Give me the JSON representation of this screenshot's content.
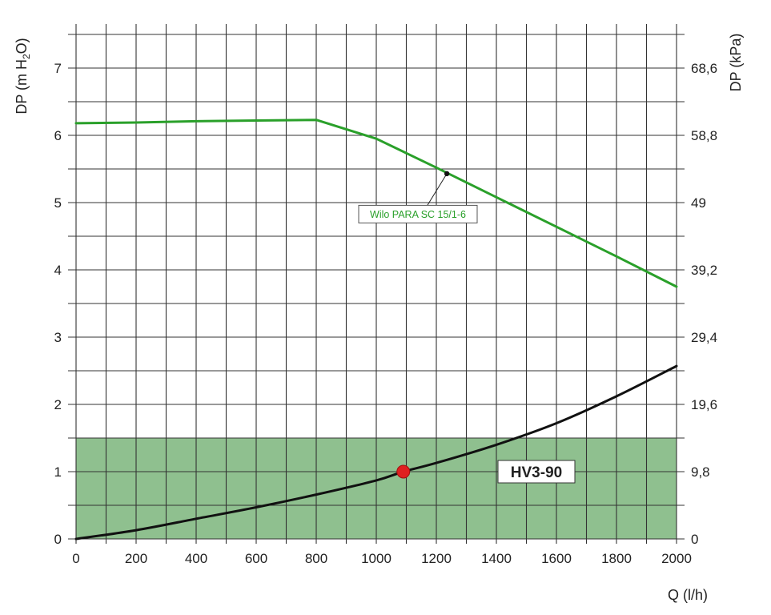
{
  "chart_data": {
    "type": "line",
    "xlabel": "Q (l/h)",
    "ylabel": {
      "prefix": "DP (m H",
      "sub": "2",
      "suffix": "O)"
    },
    "ylabel_right": "DP (kPa)",
    "xlim": [
      0,
      2000
    ],
    "ylim": [
      0,
      7.5
    ],
    "x_ticks": [
      0,
      200,
      400,
      600,
      800,
      1000,
      1200,
      1400,
      1600,
      1800,
      2000
    ],
    "y_ticks": [
      0,
      1,
      2,
      3,
      4,
      5,
      6,
      7
    ],
    "y_ticks_right": [
      {
        "value": 0,
        "label": "0"
      },
      {
        "value": 1,
        "label": "9,8"
      },
      {
        "value": 2,
        "label": "19,6"
      },
      {
        "value": 3,
        "label": "29,4"
      },
      {
        "value": 4,
        "label": "39,2"
      },
      {
        "value": 5,
        "label": "49"
      },
      {
        "value": 6,
        "label": "58,8"
      },
      {
        "value": 7,
        "label": "68,6"
      }
    ],
    "grid": true,
    "shaded_band": {
      "y_from": 0,
      "y_to": 1.5,
      "x_from": 0,
      "x_to": 2000,
      "color": "#8fc08f"
    },
    "series": [
      {
        "name": "Wilo PARA SC 15/1-6",
        "color": "#2aa02a",
        "x": [
          0,
          200,
          400,
          600,
          800,
          1000,
          1200,
          1400,
          1600,
          1800,
          2000
        ],
        "y": [
          6.18,
          6.19,
          6.21,
          6.22,
          6.23,
          5.95,
          5.52,
          5.08,
          4.64,
          4.2,
          3.75
        ]
      },
      {
        "name": "HV3-90",
        "color": "#111111",
        "x": [
          0,
          200,
          400,
          600,
          800,
          1000,
          1090,
          1200,
          1400,
          1600,
          1800,
          2000
        ],
        "y": [
          0,
          0.13,
          0.3,
          0.47,
          0.66,
          0.87,
          1.0,
          1.13,
          1.4,
          1.72,
          2.12,
          2.57
        ]
      }
    ],
    "operating_point": {
      "x": 1090,
      "y": 1.0,
      "color": "#e02020"
    },
    "annotations": [
      {
        "text": "Wilo PARA SC 15/1-6",
        "point_x": 1235,
        "point_y": 5.43,
        "label_x": 1000,
        "label_y": 4.9
      },
      {
        "text": "HV3-90",
        "label_x": 1280,
        "label_y": 1.0
      }
    ]
  }
}
